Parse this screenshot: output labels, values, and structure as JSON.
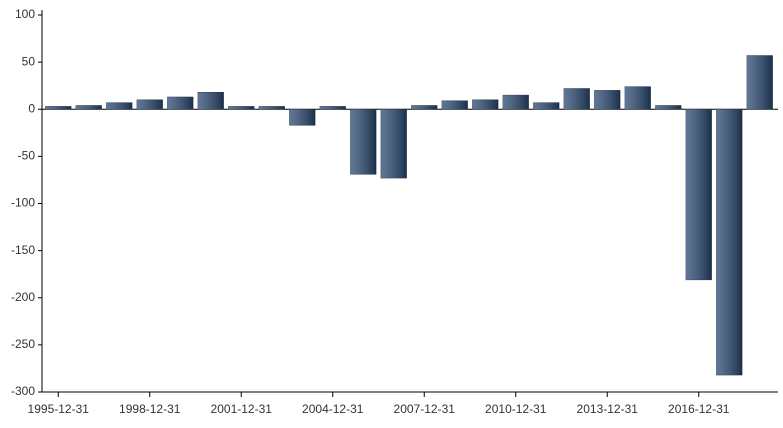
{
  "chart_data": {
    "type": "bar",
    "categories": [
      "1995-12-31",
      null,
      null,
      "1998-12-31",
      null,
      null,
      "2001-12-31",
      null,
      null,
      "2004-12-31",
      null,
      null,
      "2007-12-31",
      null,
      null,
      "2010-12-31",
      null,
      null,
      "2013-12-31",
      null,
      null,
      "2016-12-31",
      null,
      null
    ],
    "values": [
      3,
      4,
      7,
      10,
      13,
      18,
      3,
      3,
      -17,
      3,
      -69,
      -73,
      4,
      9,
      10,
      15,
      7,
      22,
      20,
      24,
      4,
      -181,
      -282,
      57
    ],
    "color": "#2b4a74",
    "ylim": [
      -300,
      100
    ],
    "yticks": [
      -300,
      -250,
      -200,
      -150,
      -100,
      -50,
      0,
      50,
      100
    ],
    "grid": false
  }
}
